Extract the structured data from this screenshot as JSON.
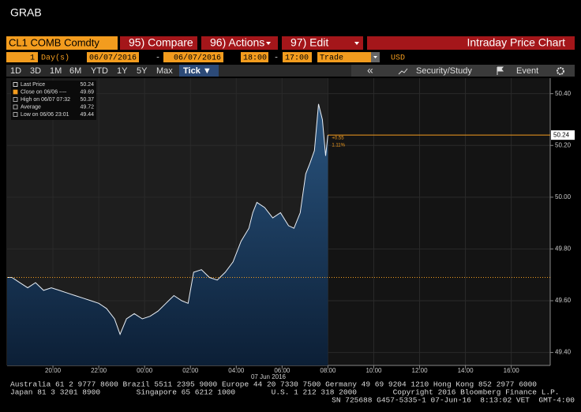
{
  "header": {
    "title": "GRAB"
  },
  "toolbar": {
    "security": "CL1 COMB Comdty",
    "buttons": [
      "95) Compare",
      "96) Actions",
      "97) Edit"
    ],
    "chart_name": "Intraday Price Chart"
  },
  "settings": {
    "period": "1",
    "unit": "Day(s)",
    "start_date": "06/07/2016",
    "dash1": "-",
    "end_date": "06/07/2016",
    "start_time": "18:00",
    "dash2": "-",
    "end_time": "17:00",
    "field": "Trade",
    "currency": "USD"
  },
  "ranges": [
    "1D",
    "3D",
    "1M",
    "6M",
    "YTD",
    "1Y",
    "5Y",
    "Max",
    "Tick ▼"
  ],
  "tools": {
    "back": "«",
    "study": "Security/Study",
    "event": "Event"
  },
  "legend": [
    {
      "label": "Last Price",
      "value": "50.24"
    },
    {
      "label": "Close on 06/06 ----",
      "value": "49.69"
    },
    {
      "label": "High on 06/07 07:32",
      "value": "50.37"
    },
    {
      "label": "Average",
      "value": "49.72"
    },
    {
      "label": "Low on 06/06 23:01",
      "value": "49.44"
    }
  ],
  "chart_data": {
    "type": "area",
    "x": [
      0,
      0.21,
      0.55,
      0.9,
      1.24,
      1.59,
      1.93,
      2.28,
      2.62,
      2.97,
      3.31,
      3.66,
      4.0,
      4.34,
      4.69,
      4.93,
      5.21,
      5.55,
      5.9,
      6.24,
      6.59,
      6.93,
      7.28,
      7.62,
      7.9,
      8.14,
      8.48,
      8.83,
      9.17,
      9.52,
      9.86,
      10.21,
      10.55,
      10.72,
      10.9,
      11.24,
      11.59,
      11.93,
      12.28,
      12.52,
      12.79,
      13.03,
      13.21,
      13.41,
      13.59,
      13.76,
      13.9,
      14.0
    ],
    "series": [
      {
        "name": "Last Price",
        "color": "#e8eef5",
        "values": [
          49.69,
          49.69,
          49.67,
          49.65,
          49.67,
          49.64,
          49.65,
          49.64,
          49.63,
          49.62,
          49.61,
          49.6,
          49.59,
          49.57,
          49.53,
          49.47,
          49.53,
          49.55,
          49.53,
          49.54,
          49.56,
          49.59,
          49.62,
          49.6,
          49.59,
          49.71,
          49.72,
          49.69,
          49.68,
          49.71,
          49.75,
          49.83,
          49.88,
          49.94,
          49.98,
          49.96,
          49.92,
          49.94,
          49.89,
          49.88,
          49.94,
          50.09,
          50.13,
          50.18,
          50.36,
          50.3,
          50.16,
          50.24
        ]
      }
    ],
    "last_price": 50.24,
    "close": 49.69,
    "change": "+0.55",
    "change_pct": "1.11%",
    "date_label": "07 Jun 2016",
    "xlim": [
      0,
      23.7
    ],
    "xticks": [
      {
        "value": 2,
        "label": "20:00"
      },
      {
        "value": 4,
        "label": "22:00"
      },
      {
        "value": 6,
        "label": "00:00"
      },
      {
        "value": 8,
        "label": "02:00"
      },
      {
        "value": 10,
        "label": "04:00"
      },
      {
        "value": 12,
        "label": "06:00"
      },
      {
        "value": 14,
        "label": "08:00"
      },
      {
        "value": 16,
        "label": "10:00"
      },
      {
        "value": 18,
        "label": "12:00"
      },
      {
        "value": 20,
        "label": "14:00"
      },
      {
        "value": 22,
        "label": "16:00"
      }
    ],
    "ylim": [
      49.35,
      50.46
    ],
    "yticks": [
      {
        "value": 49.4,
        "label": "49.40"
      },
      {
        "value": 49.6,
        "label": "49.60"
      },
      {
        "value": 49.8,
        "label": "49.80"
      },
      {
        "value": 50.0,
        "label": "50.00"
      },
      {
        "value": 50.2,
        "label": "50.20"
      },
      {
        "value": 50.4,
        "label": "50.40"
      }
    ],
    "grid": true
  },
  "footer": [
    "Australia 61 2 9777 8600 Brazil 5511 2395 9000 Europe 44 20 7330 7500 Germany 49 69 9204 1210 Hong Kong 852 2977 6000",
    "Japan 81 3 3201 8900        Singapore 65 6212 1000        U.S. 1 212 318 2000        Copyright 2016 Bloomberg Finance L.P.",
    "SN 725688 G457-5335-1 07-Jun-16  8:13:02 VET  GMT-4:00"
  ]
}
